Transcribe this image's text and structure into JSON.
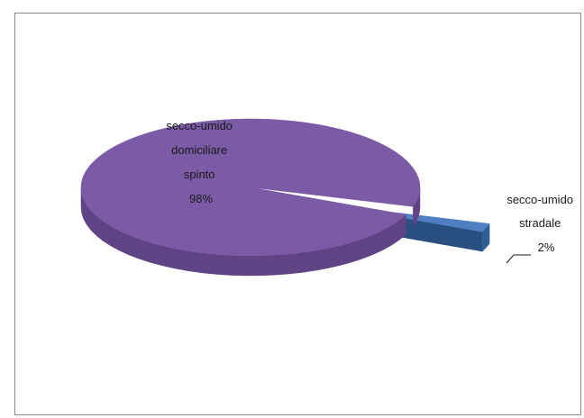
{
  "chart_data": {
    "type": "pie",
    "style": "3d-exploded",
    "slices": [
      {
        "label_lines": [
          "secco-umido",
          "domiciliare",
          "spinto"
        ],
        "value": 98,
        "value_label": "98%",
        "color": "#7b5aa6",
        "side_color": "#5f4384",
        "exploded": false
      },
      {
        "label_lines": [
          "secco-umido",
          "stradale"
        ],
        "value": 2,
        "value_label": "2%",
        "color": "#4f7fc0",
        "side_color": "#2f5d95",
        "exploded": true
      }
    ],
    "legend": "none",
    "title": ""
  }
}
